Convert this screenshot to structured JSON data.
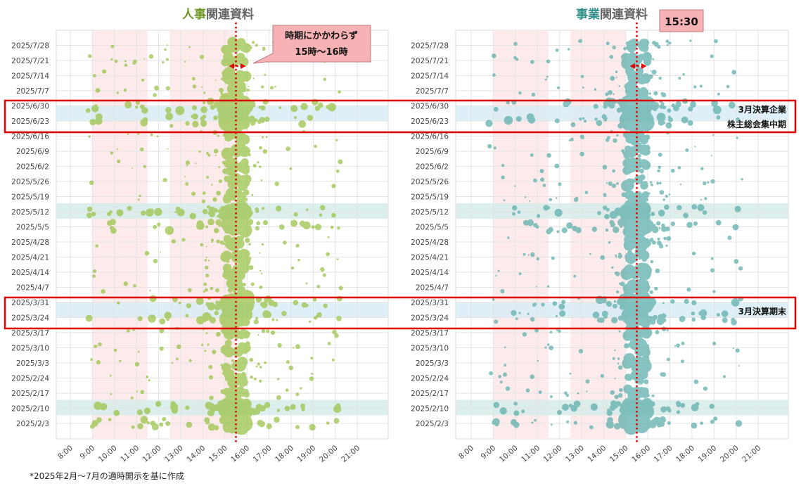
{
  "footnote": "*2025年2月～7月の適時開示を基に作成",
  "colors": {
    "hr_series": "#9bc34a",
    "hr_accent": "#6f9a2a",
    "biz_series": "#5fb0ac",
    "biz_accent": "#2f8f8a",
    "pink_band": "#fdebeb",
    "blue_band": "#d9ecf6",
    "teal_band": "#d6ecea",
    "red": "#e00000",
    "callout_fill": "#f6b2b4"
  },
  "chart_data": [
    {
      "type": "scatter",
      "id": "hr",
      "title_accent": "人事",
      "title_rest": "関連資料",
      "x_ticks": [
        "8:00",
        "9:00",
        "10:00",
        "11:00",
        "12:00",
        "13:00",
        "14:00",
        "15:00",
        "16:00",
        "17:00",
        "18:00",
        "19:00",
        "20:00",
        "21:00"
      ],
      "y_ticks": [
        "2025/7/28",
        "2025/7/21",
        "2025/7/14",
        "2025/7/7",
        "2025/6/30",
        "2025/6/23",
        "2025/6/16",
        "2025/6/9",
        "2025/6/2",
        "2025/5/26",
        "2025/5/19",
        "2025/5/12",
        "2025/5/5",
        "2025/4/28",
        "2025/4/21",
        "2025/4/14",
        "2025/4/7",
        "2025/3/31",
        "2025/3/24",
        "2025/3/17",
        "2025/3/10",
        "2025/3/3",
        "2025/2/24",
        "2025/2/17",
        "2025/2/10",
        "2025/2/3"
      ],
      "vertical_bands_hours": [
        [
          9.0,
          11.5
        ],
        [
          12.5,
          15.5
        ]
      ],
      "reference_line_hour": 15.5,
      "reference_arrow_hours": [
        15.0,
        16.0
      ],
      "callout_lines": [
        "時期にかかわらず",
        "15時～16時"
      ],
      "annotation_boxes": [
        {
          "week_range": [
            "2025/6/30",
            "2025/6/23"
          ],
          "lines": [
            "3月決算企業",
            "株主総会集中期"
          ]
        },
        {
          "week_range": [
            "2025/3/31",
            "2025/3/24"
          ],
          "lines": [
            "3月決算期末"
          ]
        }
      ],
      "highlight_rows": [
        {
          "week": "2025/6/30",
          "kind": "blue"
        },
        {
          "week": "2025/5/12",
          "kind": "teal"
        },
        {
          "week": "2025/3/31",
          "kind": "blue"
        },
        {
          "week": "2025/2/10",
          "kind": "teal"
        }
      ],
      "bubble_sample": [
        {
          "week": "2025/7/28",
          "time": "15:30",
          "size": "large"
        },
        {
          "week": "2025/6/23",
          "time": "15:30",
          "size": "large"
        },
        {
          "week": "2025/5/12",
          "time": "15:00",
          "size": "large"
        },
        {
          "week": "2025/5/12",
          "time": "15:30",
          "size": "large"
        },
        {
          "week": "2025/3/31",
          "time": "15:30",
          "size": "large"
        },
        {
          "week": "2025/2/10",
          "time": "15:30",
          "size": "large"
        }
      ]
    },
    {
      "type": "scatter",
      "id": "biz",
      "title_accent": "事業",
      "title_rest": "関連資料",
      "x_ticks": [
        "8:00",
        "9:00",
        "10:00",
        "11:00",
        "12:00",
        "13:00",
        "14:00",
        "15:00",
        "16:00",
        "17:00",
        "18:00",
        "19:00",
        "20:00",
        "21:00"
      ],
      "y_ticks": [
        "2025/7/28",
        "2025/7/21",
        "2025/7/14",
        "2025/7/7",
        "2025/6/30",
        "2025/6/23",
        "2025/6/16",
        "2025/6/9",
        "2025/6/2",
        "2025/5/26",
        "2025/5/19",
        "2025/5/12",
        "2025/5/5",
        "2025/4/28",
        "2025/4/21",
        "2025/4/14",
        "2025/4/7",
        "2025/3/31",
        "2025/3/24",
        "2025/3/17",
        "2025/3/10",
        "2025/3/3",
        "2025/2/24",
        "2025/2/17",
        "2025/2/10",
        "2025/2/3"
      ],
      "vertical_bands_hours": [
        [
          9.0,
          11.5
        ],
        [
          12.5,
          15.0
        ]
      ],
      "reference_line_hour": 15.5,
      "reference_arrow_hours": [
        15.0,
        16.0
      ],
      "callout_lines": [
        "15:30"
      ],
      "annotation_boxes": [
        {
          "week_range": [
            "2025/6/30",
            "2025/6/23"
          ],
          "lines": [
            "3月決算企業",
            "株主総会集中期"
          ]
        },
        {
          "week_range": [
            "2025/3/31",
            "2025/3/24"
          ],
          "lines": [
            "3月決算期末"
          ]
        }
      ],
      "highlight_rows": [
        {
          "week": "2025/6/30",
          "kind": "blue"
        },
        {
          "week": "2025/5/12",
          "kind": "teal"
        },
        {
          "week": "2025/3/31",
          "kind": "blue"
        },
        {
          "week": "2025/2/10",
          "kind": "teal"
        }
      ],
      "bubble_sample": [
        {
          "week": "2025/6/30",
          "time": "15:30",
          "size": "large"
        },
        {
          "week": "2025/6/23",
          "time": "15:30",
          "size": "large"
        },
        {
          "week": "2025/5/12",
          "time": "15:30",
          "size": "large"
        },
        {
          "week": "2025/3/31",
          "time": "15:30",
          "size": "large"
        },
        {
          "week": "2025/2/10",
          "time": "15:30",
          "size": "large"
        }
      ]
    }
  ]
}
